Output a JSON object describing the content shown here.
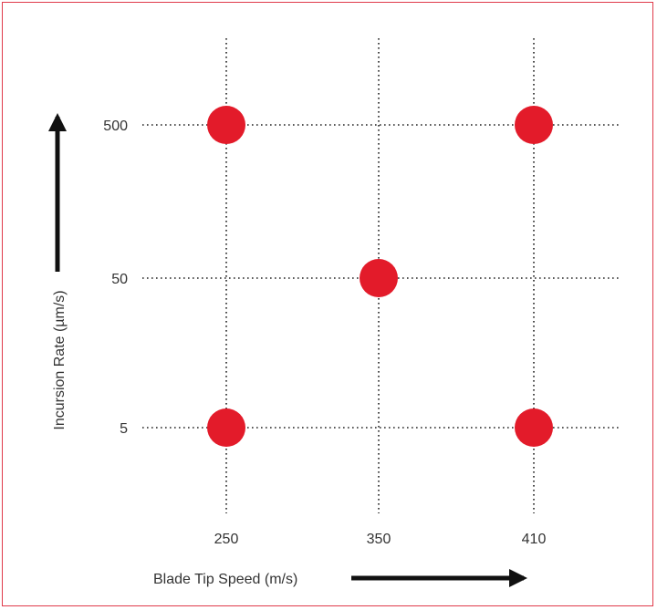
{
  "chart_data": {
    "type": "scatter",
    "xlabel": "Blade Tip Speed (m/s)",
    "ylabel": "Incursion Rate (µm/s)",
    "x_categories": [
      "250",
      "350",
      "410"
    ],
    "y_categories": [
      "5",
      "50",
      "500"
    ],
    "y_scale": "log",
    "grid": true,
    "legend": "none",
    "points": [
      {
        "x": 250,
        "y": 500
      },
      {
        "x": 410,
        "y": 500
      },
      {
        "x": 350,
        "y": 50
      },
      {
        "x": 250,
        "y": 5
      },
      {
        "x": 410,
        "y": 5
      }
    ],
    "colors": {
      "marker": "#e31b2a",
      "grid": "#222222",
      "frame": "#e03a4a",
      "arrow": "#111111",
      "text": "#333333"
    }
  }
}
